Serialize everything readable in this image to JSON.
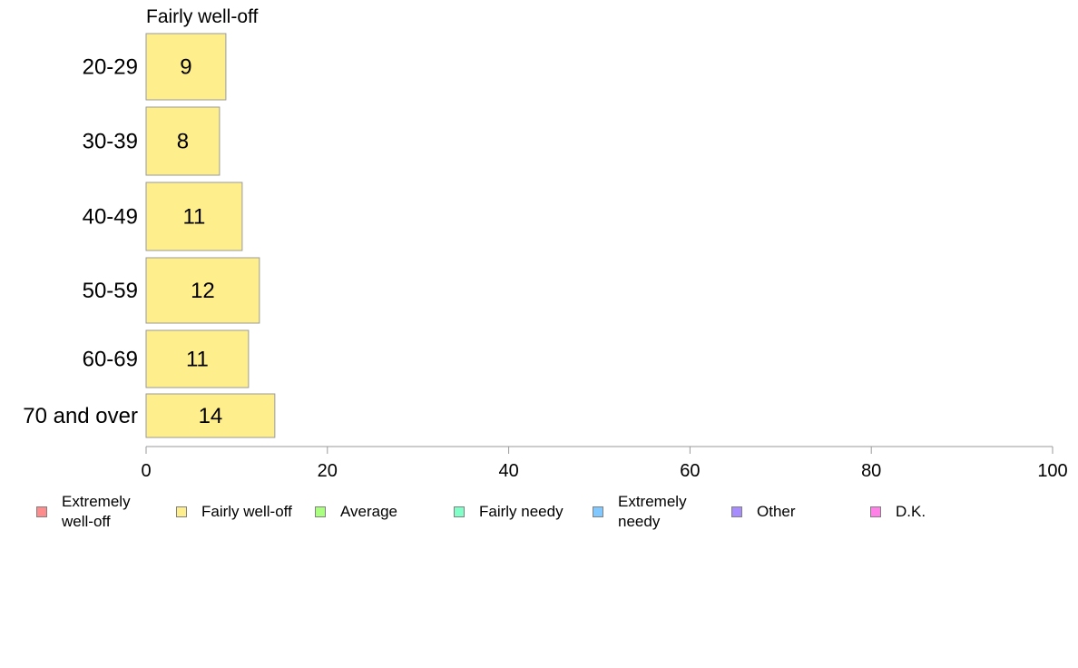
{
  "chart_data": {
    "type": "bar",
    "orientation": "horizontal",
    "title": "Fairly well-off",
    "categories": [
      "20-29",
      "30-39",
      "40-49",
      "50-59",
      "60-69",
      "70 and over"
    ],
    "series": [
      {
        "name": "Fairly well-off",
        "values": [
          8.8,
          8.1,
          10.6,
          12.5,
          11.3,
          14.2
        ],
        "labels": [
          "9",
          "8",
          "11",
          "12",
          "11",
          "14"
        ],
        "color": "#ffee8c"
      }
    ],
    "xlim": [
      0,
      100
    ],
    "xticks": [
      0,
      20,
      40,
      60,
      80,
      100
    ],
    "xtick_labels": [
      "0",
      "20",
      "40",
      "60",
      "80",
      "100"
    ],
    "grid": false,
    "legend": {
      "placement": "bottom",
      "entries": [
        {
          "label": "Extremely well-off",
          "color": "#ff8c8c"
        },
        {
          "label": "Fairly well-off",
          "color": "#ffee8c"
        },
        {
          "label": "Average",
          "color": "#aaff80"
        },
        {
          "label": "Fairly needy",
          "color": "#80ffc8"
        },
        {
          "label": "Extremely needy",
          "color": "#80c8ff"
        },
        {
          "label": "Other",
          "color": "#a68cff"
        },
        {
          "label": "D.K.",
          "color": "#ff80e6"
        }
      ]
    }
  }
}
